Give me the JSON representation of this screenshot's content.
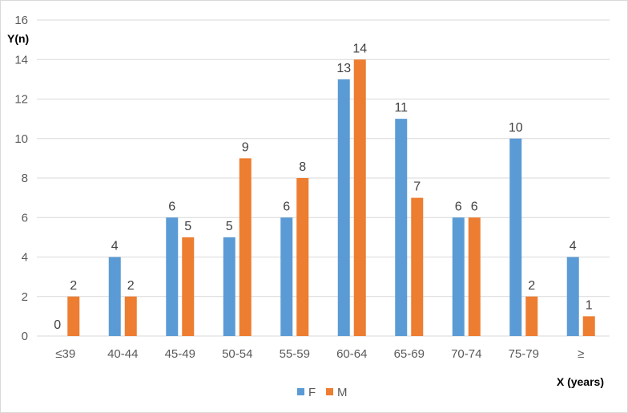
{
  "chart_data": {
    "type": "bar",
    "categories": [
      "≤39",
      "40-44",
      "45-49",
      "50-54",
      "55-59",
      "60-64",
      "65-69",
      "70-74",
      "75-79",
      "≥"
    ],
    "series": [
      {
        "name": "F",
        "color": "#5B9BD5",
        "values": [
          0,
          4,
          6,
          5,
          6,
          13,
          11,
          6,
          10,
          4
        ]
      },
      {
        "name": "M",
        "color": "#ED7D31",
        "values": [
          2,
          2,
          5,
          9,
          8,
          14,
          7,
          6,
          2,
          1
        ]
      }
    ],
    "xlabel": "X (years)",
    "ylabel": "Y(n)",
    "ylim": [
      0,
      16
    ],
    "yticks": [
      0,
      2,
      4,
      6,
      8,
      10,
      12,
      14,
      16
    ],
    "grid": true,
    "legend_position": "bottom",
    "data_labels": true
  }
}
